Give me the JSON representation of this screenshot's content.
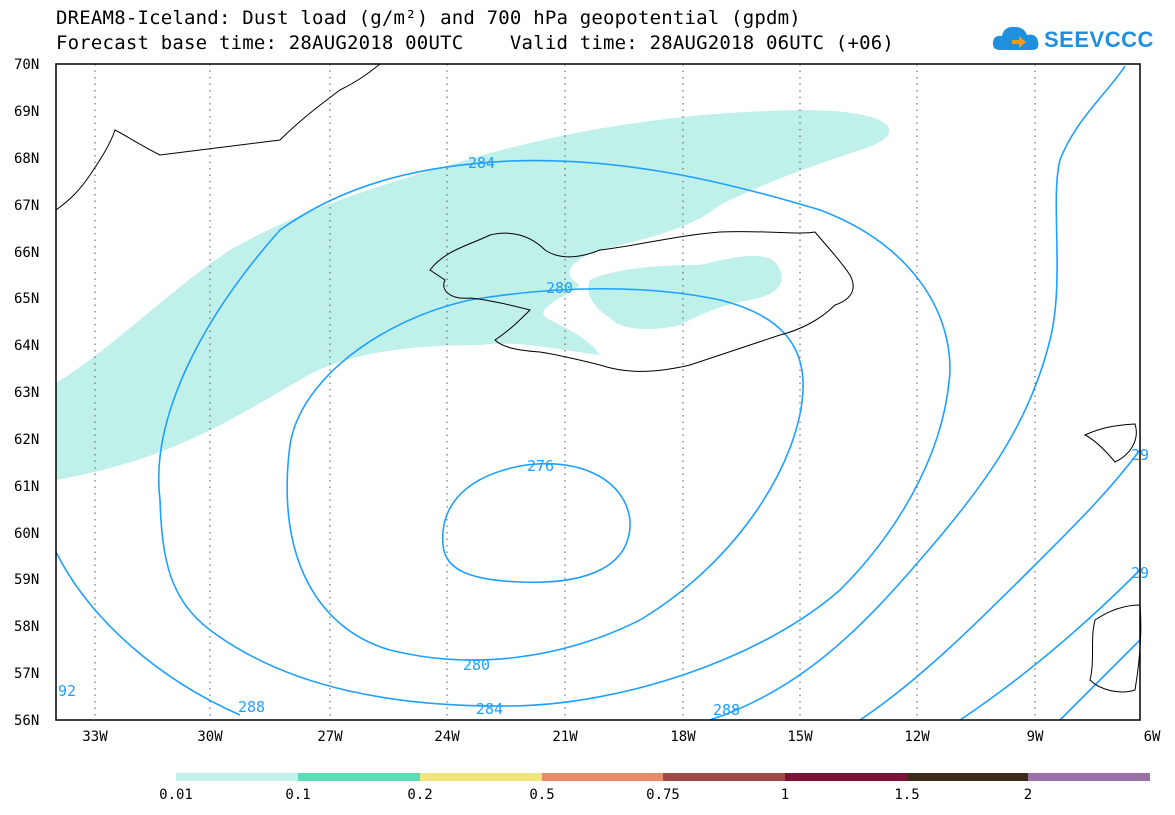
{
  "title_line1": "DREAM8-Iceland: Dust load (g/m²) and 700 hPa geopotential (gpdm)",
  "title_line2": "Forecast base time: 28AUG2018 00UTC    Valid time: 28AUG2018 06UTC (+06)",
  "logo_text": "SEEVCCC",
  "map": {
    "lat_labels": [
      "70N",
      "69N",
      "68N",
      "67N",
      "66N",
      "65N",
      "64N",
      "63N",
      "62N",
      "61N",
      "60N",
      "59N",
      "58N",
      "57N",
      "56N"
    ],
    "lon_labels": [
      "33W",
      "30W",
      "27W",
      "24W",
      "21W",
      "18W",
      "15W",
      "12W",
      "9W",
      "6W"
    ],
    "contour_labels": [
      "284",
      "280",
      "276",
      "280",
      "284",
      "288",
      "288",
      "92",
      "29",
      "29"
    ],
    "contour_color": "#1fa0ff",
    "dust_fill_color": "#bff0ea",
    "coastline_color": "#000000"
  },
  "colorbar": {
    "colors": [
      "#c3f2ea",
      "#5cdcb4",
      "#f0e67a",
      "#e98b68",
      "#a14a45",
      "#7e1235",
      "#3d2c1a",
      "#9b70a6"
    ],
    "labels": [
      "0.01",
      "0.1",
      "0.2",
      "0.5",
      "0.75",
      "1",
      "1.5",
      "2"
    ]
  }
}
